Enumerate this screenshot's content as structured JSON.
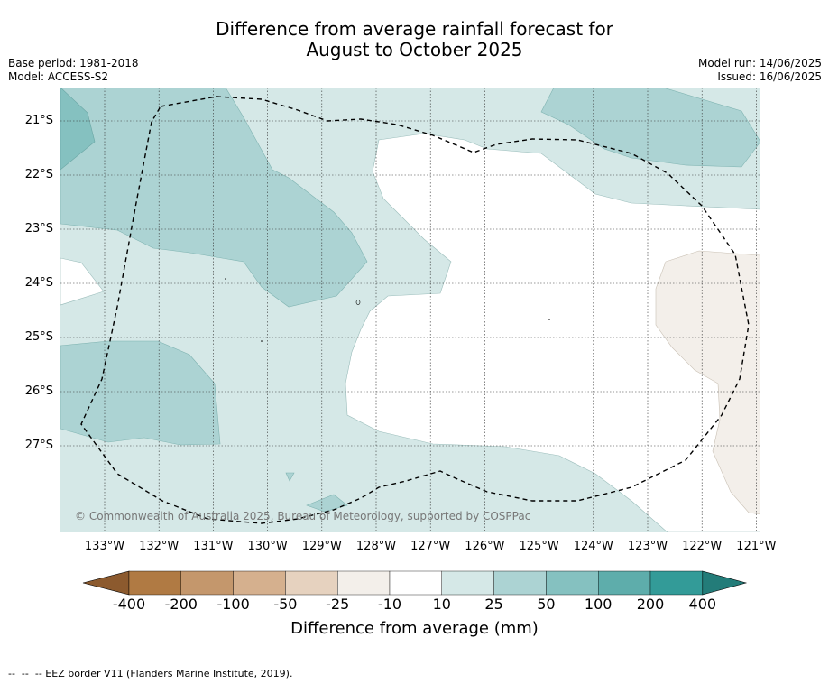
{
  "title": {
    "line1": "Difference from average rainfall forecast for",
    "line2": "August to October 2025"
  },
  "meta": {
    "base_period": "Base period: 1981-2018",
    "model": "Model: ACCESS-S2",
    "model_run": "Model run: 14/06/2025",
    "issued": "Issued: 16/06/2025"
  },
  "map": {
    "latitude_labels": [
      "21°S",
      "22°S",
      "23°S",
      "24°S",
      "25°S",
      "26°S",
      "27°S"
    ],
    "longitude_labels": [
      "133°W",
      "132°W",
      "131°W",
      "130°W",
      "129°W",
      "128°W",
      "127°W",
      "126°W",
      "125°W",
      "124°W",
      "123°W",
      "122°W",
      "121°W"
    ],
    "copyright": "© Commonwealth of Australia 2025, Bureau of Meteorology, supported by COSPPac",
    "eez_boundary_style": "dashed"
  },
  "colorbar": {
    "title": "Difference from average (mm)",
    "labels": [
      "-400",
      "-200",
      "-100",
      "-50",
      "-25",
      "-10",
      "10",
      "25",
      "50",
      "100",
      "200",
      "400"
    ],
    "colors": [
      "#8c5a2e",
      "#b07a43",
      "#c4976c",
      "#d5b08e",
      "#e6d2bf",
      "#f3efea",
      "#ffffff",
      "#d5e8e7",
      "#acd3d3",
      "#85c1c0",
      "#5eadab",
      "#339b98",
      "#237c79"
    ]
  },
  "footer": {
    "legend_text": "--  --  -- EEZ border V11 (Flanders Marine Institute, 2019)."
  }
}
